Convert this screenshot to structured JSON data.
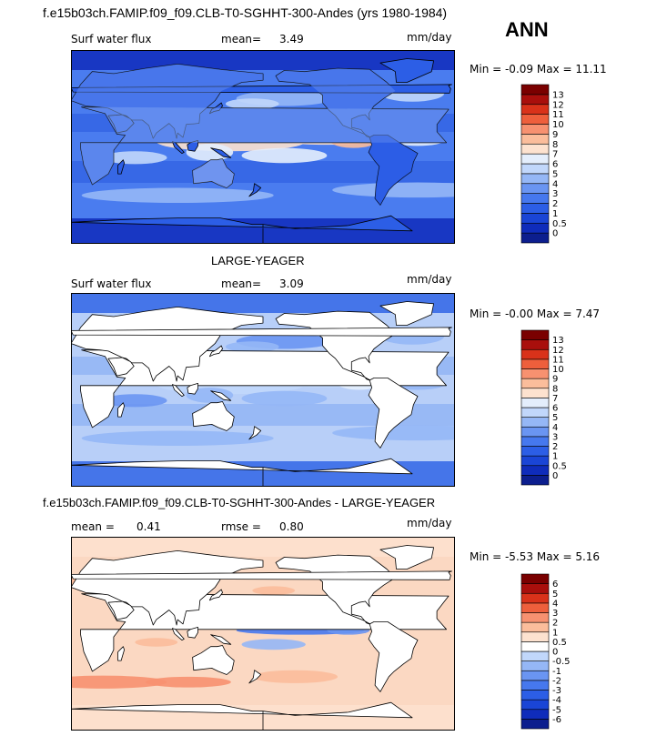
{
  "title": "f.e15b03ch.FAMIP.f09_f09.CLB-T0-SGHHT-300-Andes (yrs 1980-1984)",
  "season": "ANN",
  "chart_data": [
    {
      "type": "heatmap",
      "map": "world",
      "field_label": "Surf water flux",
      "mean_label": "mean=",
      "mean_value": "3.49",
      "units": "mm/day",
      "min_max": "Min =  -0.09 Max =  11.11",
      "colorbar": {
        "labels": [
          "0",
          "0.5",
          "1",
          "2",
          "3",
          "4",
          "5",
          "6",
          "7",
          "8",
          "9",
          "10",
          "11",
          "12",
          "13"
        ],
        "colors": [
          "#0c1e8e",
          "#0f2cbb",
          "#1a45d6",
          "#2c5ee6",
          "#4678ee",
          "#6a95f2",
          "#95b7f6",
          "#c1d7fb",
          "#e4eefc",
          "#fde2cf",
          "#fbbd9b",
          "#f79170",
          "#ee5f3c",
          "#d9321a",
          "#a90f0c",
          "#7a0000"
        ]
      }
    },
    {
      "type": "heatmap",
      "map": "world",
      "title": "LARGE-YEAGER",
      "field_label": "Surf water flux",
      "mean_label": "mean=",
      "mean_value": "3.09",
      "units": "mm/day",
      "min_max": "Min =  -0.00 Max =   7.47",
      "colorbar": {
        "labels": [
          "0",
          "0.5",
          "1",
          "2",
          "3",
          "4",
          "5",
          "6",
          "7",
          "8",
          "9",
          "10",
          "11",
          "12",
          "13"
        ],
        "colors": [
          "#0c1e8e",
          "#0f2cbb",
          "#1a45d6",
          "#2c5ee6",
          "#4678ee",
          "#6a95f2",
          "#95b7f6",
          "#c1d7fb",
          "#e4eefc",
          "#fde2cf",
          "#fbbd9b",
          "#f79170",
          "#ee5f3c",
          "#d9321a",
          "#a90f0c",
          "#7a0000"
        ]
      }
    },
    {
      "type": "heatmap",
      "map": "world",
      "title": "f.e15b03ch.FAMIP.f09_f09.CLB-T0-SGHHT-300-Andes - LARGE-YEAGER",
      "mean_label": "mean =",
      "mean_value": "0.41",
      "rmse_label": "rmse =",
      "rmse_value": "0.80",
      "units": "mm/day",
      "min_max": "Min =  -5.53 Max =   5.16",
      "colorbar": {
        "labels": [
          "-6",
          "-5",
          "-4",
          "-3",
          "-2",
          "-1",
          "-0.5",
          "0",
          "0.5",
          "1",
          "2",
          "3",
          "4",
          "5",
          "6"
        ],
        "colors": [
          "#0c1e8e",
          "#0f2cbb",
          "#1a45d6",
          "#2c5ee6",
          "#4678ee",
          "#6a95f2",
          "#95b7f6",
          "#c1d7fb",
          "#ffffff",
          "#fde2cf",
          "#fbbd9b",
          "#f79170",
          "#ee5f3c",
          "#d9321a",
          "#a90f0c",
          "#7a0000"
        ]
      }
    }
  ]
}
